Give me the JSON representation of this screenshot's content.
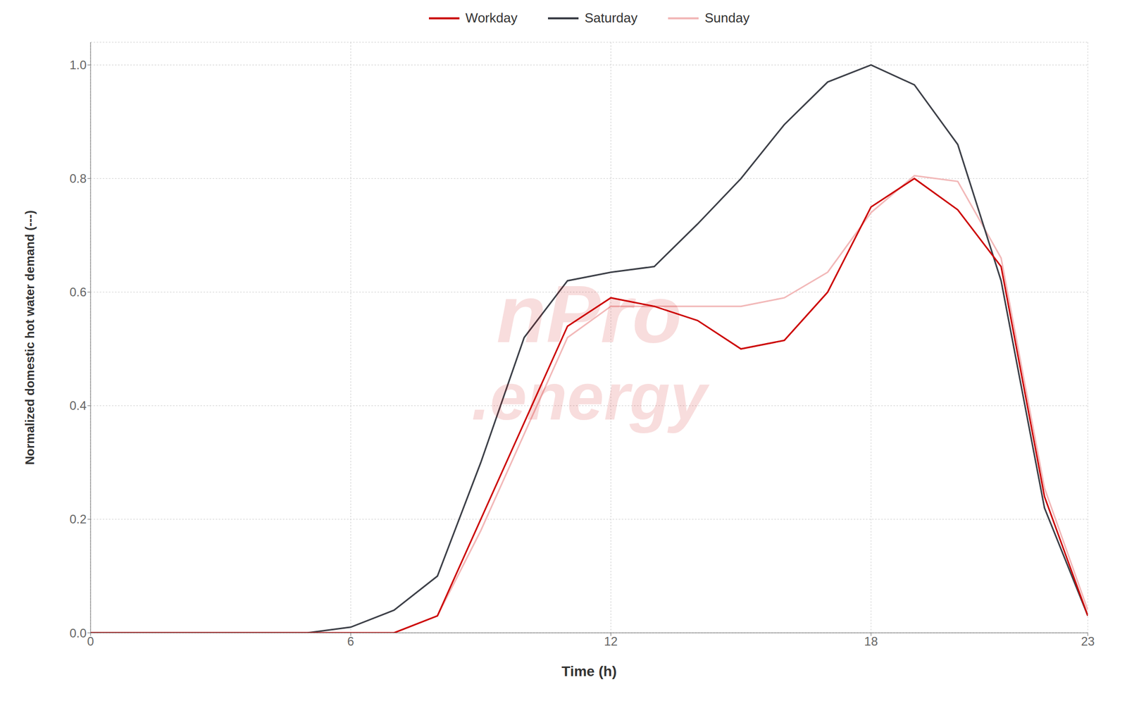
{
  "chart_data": {
    "type": "line",
    "xlabel": "Time (h)",
    "ylabel": "Normalized domestic hot water demand (---)",
    "x": [
      0,
      1,
      2,
      3,
      4,
      5,
      6,
      7,
      8,
      9,
      10,
      11,
      12,
      13,
      14,
      15,
      16,
      17,
      18,
      19,
      20,
      21,
      22,
      23
    ],
    "series": [
      {
        "name": "Workday",
        "color": "#cc0000",
        "values": [
          0,
          0,
          0,
          0,
          0,
          0,
          0,
          0.0,
          0.03,
          0.2,
          0.37,
          0.54,
          0.59,
          0.575,
          0.55,
          0.5,
          0.515,
          0.6,
          0.75,
          0.8,
          0.745,
          0.645,
          0.24,
          0.03
        ]
      },
      {
        "name": "Saturday",
        "color": "#3c3f47",
        "values": [
          0,
          0,
          0,
          0,
          0,
          0,
          0.01,
          0.04,
          0.1,
          0.3,
          0.52,
          0.62,
          0.635,
          0.645,
          0.72,
          0.8,
          0.895,
          0.97,
          1.0,
          0.965,
          0.86,
          0.62,
          0.22,
          0.03
        ]
      },
      {
        "name": "Sunday",
        "color": "#f2b8b8",
        "values": [
          0,
          0,
          0,
          0,
          0,
          0,
          0,
          0.0,
          0.03,
          0.18,
          0.35,
          0.52,
          0.575,
          0.575,
          0.575,
          0.575,
          0.59,
          0.635,
          0.74,
          0.805,
          0.795,
          0.66,
          0.255,
          0.04
        ]
      }
    ],
    "xlim": [
      0,
      23
    ],
    "ylim": [
      0.0,
      1.04
    ],
    "xticks": [
      0,
      6,
      12,
      18,
      23
    ],
    "yticks": [
      {
        "value": 0,
        "label": "0.0"
      },
      0.2,
      0.4,
      0.6,
      0.8,
      {
        "value": 1,
        "label": "1.0"
      }
    ],
    "grid": true,
    "legend": "top",
    "annotations": [
      {
        "text": "nPro",
        "color": "#cc0000"
      },
      {
        "text": ".energy",
        "color": "#cc0000"
      }
    ]
  }
}
